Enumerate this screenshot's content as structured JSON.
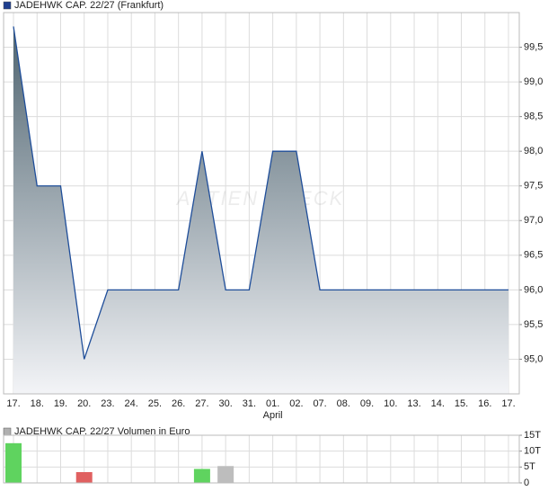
{
  "chart_data": [
    {
      "type": "area",
      "legend_title": "JADEHWK CAP. 22/27 (Frankfurt)",
      "legend_color": "#1f3f8f",
      "categories": [
        "17.",
        "18.",
        "19.",
        "20.",
        "23.",
        "24.",
        "25.",
        "26.",
        "27.",
        "30.",
        "31.",
        "01.",
        "02.",
        "07.",
        "08.",
        "09.",
        "10.",
        "13.",
        "14.",
        "15.",
        "16.",
        "17."
      ],
      "x_annotation": "April",
      "values": [
        99.8,
        97.5,
        97.5,
        95.0,
        96.0,
        96.0,
        96.0,
        96.0,
        98.0,
        96.0,
        96.0,
        98.0,
        98.0,
        96.0,
        96.0,
        96.0,
        96.0,
        96.0,
        96.0,
        96.0,
        96.0,
        96.0
      ],
      "line_color": "#1f4e9a",
      "watermark": "AKTIEN CHECK",
      "ylim": [
        94.5,
        100.0
      ],
      "yticks": [
        {
          "value": 95.0,
          "label": "95,0"
        },
        {
          "value": 95.5,
          "label": "95,5"
        },
        {
          "value": 96.0,
          "label": "96,0"
        },
        {
          "value": 96.5,
          "label": "96,5"
        },
        {
          "value": 97.0,
          "label": "97,0"
        },
        {
          "value": 97.5,
          "label": "97,5"
        },
        {
          "value": 98.0,
          "label": "98,0"
        },
        {
          "value": 98.5,
          "label": "98,5"
        },
        {
          "value": 99.0,
          "label": "99,0"
        },
        {
          "value": 99.5,
          "label": "99,5"
        }
      ],
      "grid": true
    },
    {
      "type": "bar",
      "legend_title": "JADEHWK CAP. 22/27 Volumen in Euro",
      "legend_color": "#b0b0b0",
      "values": [
        12.5,
        null,
        null,
        3.4,
        null,
        null,
        null,
        null,
        4.4,
        5.3,
        null,
        null,
        null,
        null,
        null,
        null,
        null,
        null,
        null,
        null,
        null,
        null
      ],
      "bar_colors": [
        "#5fd35f",
        null,
        null,
        "#e06060",
        null,
        null,
        null,
        null,
        "#5fd35f",
        "#bdbdbd",
        null,
        null,
        null,
        null,
        null,
        null,
        null,
        null,
        null,
        null,
        null,
        null
      ],
      "ylim": [
        0,
        15
      ],
      "yticks": [
        {
          "value": 0,
          "label": "0"
        },
        {
          "value": 5,
          "label": "5T"
        },
        {
          "value": 10,
          "label": "10T"
        },
        {
          "value": 15,
          "label": "15T"
        }
      ],
      "grid": true
    }
  ]
}
